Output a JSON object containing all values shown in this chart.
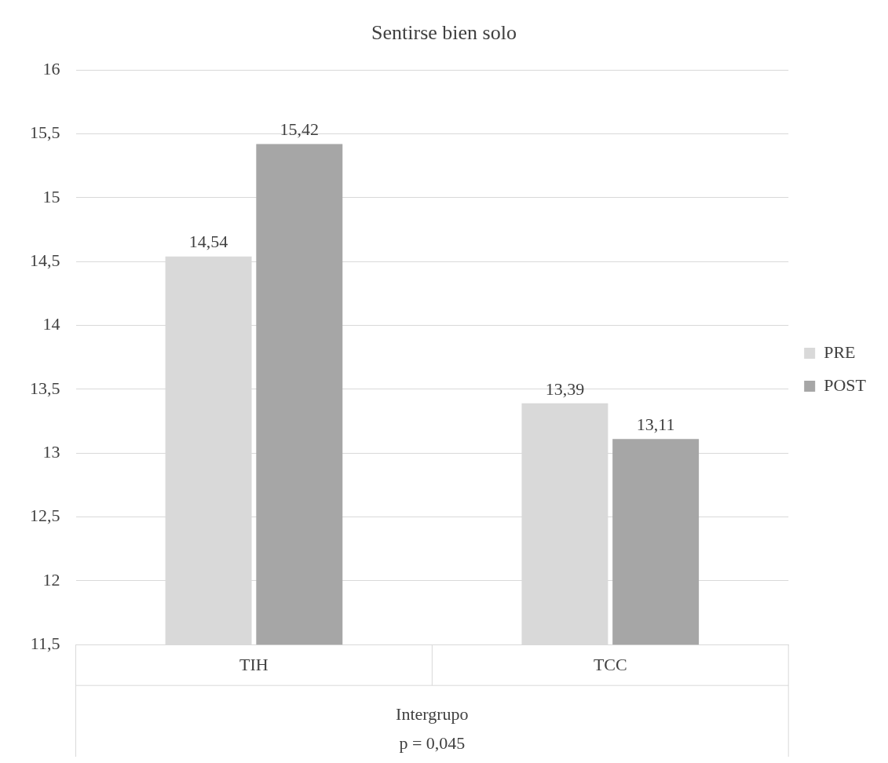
{
  "chart_data": {
    "type": "bar",
    "title": "Sentirse bien solo",
    "categories": [
      "TIH",
      "TCC"
    ],
    "series": [
      {
        "name": "PRE",
        "color": "#d9d9d9",
        "values": [
          14.54,
          13.39
        ]
      },
      {
        "name": "POST",
        "color": "#a6a6a6",
        "values": [
          15.42,
          13.11
        ]
      }
    ],
    "value_labels": [
      [
        "14,54",
        "13,39"
      ],
      [
        "15,42",
        "13,11"
      ]
    ],
    "xlabel": "Intergrupo",
    "annotations": [
      "p = 0,045"
    ],
    "ylim": [
      11.5,
      16
    ],
    "yticks": [
      {
        "value": 11.5,
        "label": "11,5"
      },
      {
        "value": 12,
        "label": "12"
      },
      {
        "value": 12.5,
        "label": "12,5"
      },
      {
        "value": 13,
        "label": "13"
      },
      {
        "value": 13.5,
        "label": "13,5"
      },
      {
        "value": 14,
        "label": "14"
      },
      {
        "value": 14.5,
        "label": "14,5"
      },
      {
        "value": 15,
        "label": "15"
      },
      {
        "value": 15.5,
        "label": "15,5"
      },
      {
        "value": 16,
        "label": "16"
      }
    ],
    "grid": "y",
    "legend": "right"
  }
}
